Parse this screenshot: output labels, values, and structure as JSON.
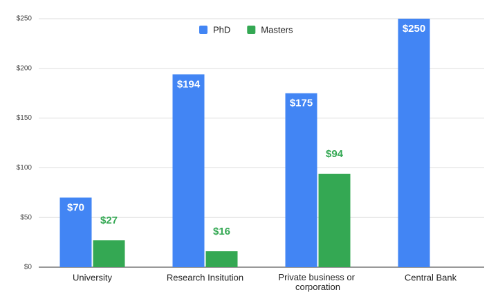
{
  "chart_data": {
    "type": "bar",
    "categories": [
      "University",
      "Research Insitution",
      "Private business or corporation",
      "Central Bank"
    ],
    "series": [
      {
        "name": "PhD",
        "color": "#4285f4",
        "values": [
          70,
          194,
          175,
          250
        ],
        "value_labels": [
          "$70",
          "$194",
          "$175",
          "$250"
        ]
      },
      {
        "name": "Masters",
        "color": "#34a853",
        "values": [
          27,
          16,
          94,
          null
        ],
        "value_labels": [
          "$27",
          "$16",
          "$94",
          null
        ]
      }
    ],
    "ylim": [
      0,
      250
    ],
    "yticks": [
      {
        "value": 0,
        "label": "$0"
      },
      {
        "value": 50,
        "label": "$50"
      },
      {
        "value": 100,
        "label": "$100"
      },
      {
        "value": 150,
        "label": "$150"
      },
      {
        "value": 200,
        "label": "$200"
      },
      {
        "value": 250,
        "label": "$250"
      }
    ],
    "grid": true,
    "legend": "top"
  }
}
